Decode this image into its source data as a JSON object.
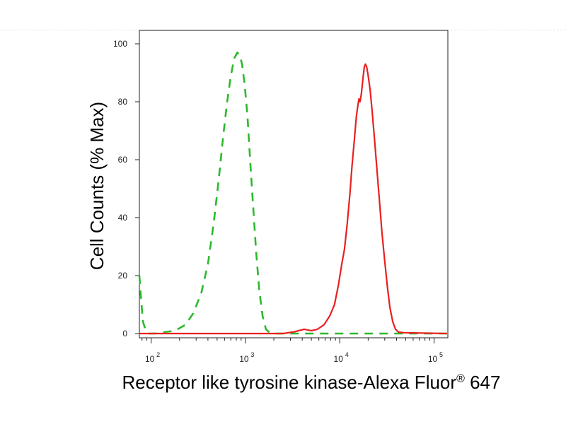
{
  "chart_data": {
    "type": "line",
    "xlabel": "Receptor like tyrosine kinase-Alexa Fluor",
    "xlabel_superscript": "®",
    "xlabel_suffix": " 647",
    "ylabel": "Cell Counts (% Max)",
    "x_scale": "log",
    "xlim": [
      75,
      140000
    ],
    "ylim": [
      0,
      105
    ],
    "y_ticks": [
      0,
      20,
      40,
      60,
      80,
      100
    ],
    "x_ticks": [
      {
        "value": 100,
        "base": "10",
        "exp": "2"
      },
      {
        "value": 1000,
        "base": "10",
        "exp": "3"
      },
      {
        "value": 10000,
        "base": "10",
        "exp": "4"
      },
      {
        "value": 100000,
        "base": "10",
        "exp": "5"
      }
    ],
    "grid": false,
    "series": [
      {
        "style": "dashed",
        "color": "#2db82d",
        "points": [
          [
            75,
            20
          ],
          [
            78,
            12
          ],
          [
            82,
            4
          ],
          [
            88,
            0.8
          ],
          [
            95,
            0
          ],
          [
            110,
            0
          ],
          [
            140,
            0.5
          ],
          [
            180,
            1
          ],
          [
            230,
            3
          ],
          [
            280,
            7
          ],
          [
            340,
            14
          ],
          [
            400,
            24
          ],
          [
            460,
            38
          ],
          [
            520,
            53
          ],
          [
            580,
            68
          ],
          [
            640,
            80
          ],
          [
            700,
            89
          ],
          [
            760,
            95
          ],
          [
            820,
            97
          ],
          [
            870,
            96
          ],
          [
            920,
            93
          ],
          [
            980,
            86
          ],
          [
            1050,
            75
          ],
          [
            1120,
            60
          ],
          [
            1200,
            45
          ],
          [
            1300,
            28
          ],
          [
            1400,
            15
          ],
          [
            1520,
            6
          ],
          [
            1650,
            1.5
          ],
          [
            1800,
            0.3
          ],
          [
            2000,
            0
          ],
          [
            140000,
            0
          ]
        ]
      },
      {
        "style": "solid",
        "color": "#e82020",
        "points": [
          [
            75,
            0
          ],
          [
            2500,
            0
          ],
          [
            3300,
            0.6
          ],
          [
            4200,
            1.5
          ],
          [
            5000,
            1
          ],
          [
            5800,
            1.5
          ],
          [
            6800,
            3
          ],
          [
            7800,
            6
          ],
          [
            8800,
            10
          ],
          [
            9700,
            17
          ],
          [
            10500,
            24
          ],
          [
            11200,
            29
          ],
          [
            12000,
            38
          ],
          [
            12800,
            48
          ],
          [
            13500,
            58
          ],
          [
            14300,
            67
          ],
          [
            15000,
            75
          ],
          [
            15600,
            79
          ],
          [
            16000,
            81
          ],
          [
            16400,
            80
          ],
          [
            17000,
            83
          ],
          [
            17600,
            88
          ],
          [
            18200,
            92
          ],
          [
            18700,
            93
          ],
          [
            19300,
            92
          ],
          [
            20000,
            89
          ],
          [
            21000,
            84
          ],
          [
            22000,
            77
          ],
          [
            23500,
            66
          ],
          [
            25000,
            55
          ],
          [
            26500,
            45
          ],
          [
            28000,
            35
          ],
          [
            30000,
            25
          ],
          [
            32000,
            16
          ],
          [
            34000,
            9
          ],
          [
            36500,
            4
          ],
          [
            39000,
            1.5
          ],
          [
            42000,
            0.5
          ],
          [
            48000,
            0.3
          ],
          [
            140000,
            0
          ]
        ]
      }
    ]
  }
}
